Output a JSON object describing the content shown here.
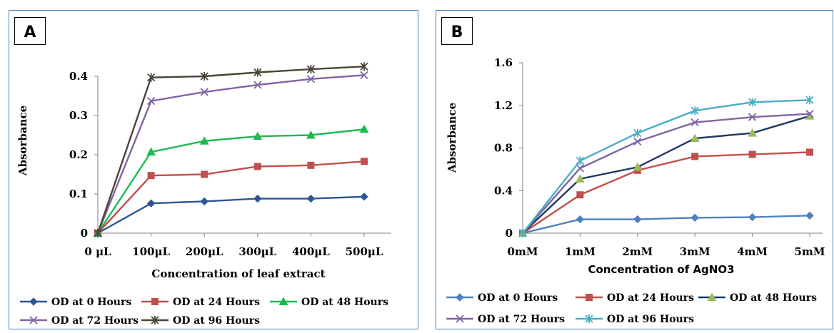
{
  "chart_data": [
    {
      "type": "line",
      "panel_label": "A",
      "xlabel": "Concentration  of leaf extract",
      "ylabel": "Absorbance",
      "categories": [
        "0 µL",
        "100µL",
        "200µL",
        "300µL",
        "400µL",
        "500µL"
      ],
      "ylim": [
        0,
        0.45
      ],
      "yticks": [
        0,
        0.1,
        0.2,
        0.3,
        0.4
      ],
      "ytick_labels": [
        "0",
        "0.1",
        "0.2",
        "0.3",
        "0.4"
      ],
      "grid": false,
      "legend_position": "bottom",
      "series": [
        {
          "name": "OD at 0 Hours",
          "color": "#2f5597",
          "marker": "diamond",
          "values": [
            0,
            0.076,
            0.081,
            0.088,
            0.088,
            0.093
          ]
        },
        {
          "name": "OD at 24 Hours",
          "color": "#c0504d",
          "marker": "square",
          "values": [
            0,
            0.147,
            0.15,
            0.17,
            0.173,
            0.183
          ]
        },
        {
          "name": "OD at 48 Hours",
          "color": "#1db954",
          "marker": "triangle",
          "values": [
            0,
            0.207,
            0.235,
            0.247,
            0.25,
            0.265
          ]
        },
        {
          "name": "OD at  72 Hours",
          "color": "#8064a2",
          "marker": "x",
          "values": [
            0,
            0.337,
            0.36,
            0.378,
            0.393,
            0.403
          ]
        },
        {
          "name": "OD at 96 Hours",
          "color": "#4a4436",
          "marker": "star",
          "values": [
            0,
            0.397,
            0.4,
            0.41,
            0.418,
            0.425
          ]
        }
      ]
    },
    {
      "type": "line",
      "panel_label": "B",
      "xlabel": "Concentration of AgNO3",
      "ylabel": "Absorbance",
      "categories": [
        "0mM",
        "1mM",
        "2mM",
        "3mM",
        "4mM",
        "5mM"
      ],
      "ylim": [
        0,
        1.6
      ],
      "yticks": [
        0,
        0.4,
        0.8,
        1.2,
        1.6
      ],
      "ytick_labels": [
        "0",
        "0.4",
        "0.8",
        "1.2",
        "1.6"
      ],
      "grid": false,
      "legend_position": "bottom",
      "series": [
        {
          "name": "OD at 0 Hours",
          "color": "#4f81bd",
          "marker": "diamond",
          "values": [
            0,
            0.13,
            0.13,
            0.145,
            0.15,
            0.165
          ]
        },
        {
          "name": "OD at 24 Hours",
          "color": "#c0504d",
          "marker": "square",
          "values": [
            0,
            0.36,
            0.59,
            0.72,
            0.74,
            0.76
          ]
        },
        {
          "name": "OD at 48 Hours",
          "color": "#1f3864",
          "marker": "triangle",
          "marker_color": "#9bbb59",
          "values": [
            0,
            0.51,
            0.62,
            0.89,
            0.94,
            1.1
          ]
        },
        {
          "name": "OD at  72 Hours",
          "color": "#8064a2",
          "marker": "x",
          "values": [
            0,
            0.61,
            0.86,
            1.04,
            1.09,
            1.12
          ]
        },
        {
          "name": "OD at 96 Hours",
          "color": "#4bacc6",
          "marker": "star",
          "values": [
            0,
            0.68,
            0.94,
            1.15,
            1.23,
            1.25
          ]
        }
      ]
    }
  ]
}
